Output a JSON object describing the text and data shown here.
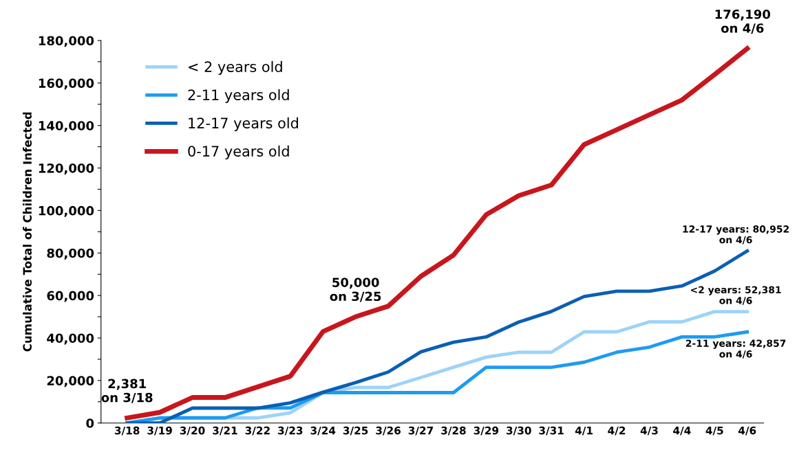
{
  "chart_data": {
    "type": "line",
    "ylabel": "Cumulative Total of Children Infected",
    "categories": [
      "3/18",
      "3/19",
      "3/20",
      "3/21",
      "3/22",
      "3/23",
      "3/24",
      "3/25",
      "3/26",
      "3/27",
      "3/28",
      "3/29",
      "3/30",
      "3/31",
      "4/1",
      "4/2",
      "4/3",
      "4/4",
      "4/5",
      "4/6"
    ],
    "series": [
      {
        "name": "< 2 years old",
        "color": "#9dd3f7",
        "values": [
          0,
          2400,
          2400,
          2400,
          2400,
          4800,
          14300,
          16700,
          16700,
          21400,
          26200,
          31000,
          33300,
          33300,
          42900,
          42900,
          47600,
          47600,
          52381,
          52381
        ]
      },
      {
        "name": "2-11 years old",
        "color": "#1e9bf0",
        "values": [
          0,
          2400,
          2400,
          2400,
          7100,
          7100,
          14300,
          14300,
          14300,
          14300,
          14300,
          26200,
          26200,
          26200,
          28600,
          33300,
          35700,
          40500,
          40500,
          42857
        ]
      },
      {
        "name": "12-17 years old",
        "color": "#0a5fb4",
        "values": [
          0,
          0,
          7000,
          7000,
          7000,
          9500,
          14500,
          19000,
          24000,
          33500,
          38000,
          40500,
          47500,
          52500,
          59500,
          62000,
          62000,
          64500,
          71500,
          80952
        ]
      },
      {
        "name": "0-17 years old",
        "color": "#c8161d",
        "values": [
          2381,
          5000,
          12000,
          12000,
          17000,
          22000,
          43000,
          50000,
          55000,
          69000,
          79000,
          98000,
          107000,
          112000,
          131000,
          138000,
          145000,
          152000,
          164000,
          176190
        ]
      }
    ],
    "ylim": [
      0,
      180000
    ],
    "yticks": [
      {
        "value": 0,
        "label": "0"
      },
      {
        "value": 10000,
        "label": null
      },
      {
        "value": 20000,
        "label": "20,000"
      },
      {
        "value": 30000,
        "label": null
      },
      {
        "value": 40000,
        "label": "40,000"
      },
      {
        "value": 50000,
        "label": null
      },
      {
        "value": 60000,
        "label": "60,000"
      },
      {
        "value": 70000,
        "label": null
      },
      {
        "value": 80000,
        "label": "80,000"
      },
      {
        "value": 90000,
        "label": null
      },
      {
        "value": 100000,
        "label": "100,000"
      },
      {
        "value": 110000,
        "label": null
      },
      {
        "value": 120000,
        "label": "120,000"
      },
      {
        "value": 130000,
        "label": null
      },
      {
        "value": 140000,
        "label": "140,000"
      },
      {
        "value": 150000,
        "label": null
      },
      {
        "value": 160000,
        "label": "160,000"
      },
      {
        "value": 170000,
        "label": null
      },
      {
        "value": 180000,
        "label": "180,000"
      }
    ],
    "annotations": [
      {
        "text": "2,381\non 3/18",
        "x": "3/18",
        "y": 2381
      },
      {
        "text": "50,000\non 3/25",
        "x": "3/25",
        "y": 50000
      },
      {
        "text": "176,190\non 4/6",
        "x": "4/6",
        "y": 176190
      },
      {
        "text": "12-17 years: 80,952\non 4/6",
        "x": "4/6",
        "y": 80952
      },
      {
        "text": "<2 years: 52,381\non 4/6",
        "x": "4/6",
        "y": 52381
      },
      {
        "text": "2-11 years: 42,857\non 4/6",
        "x": "4/6",
        "y": 42857
      }
    ],
    "grid": false,
    "legend": "top left",
    "marker": "none",
    "line_style": "solid"
  }
}
